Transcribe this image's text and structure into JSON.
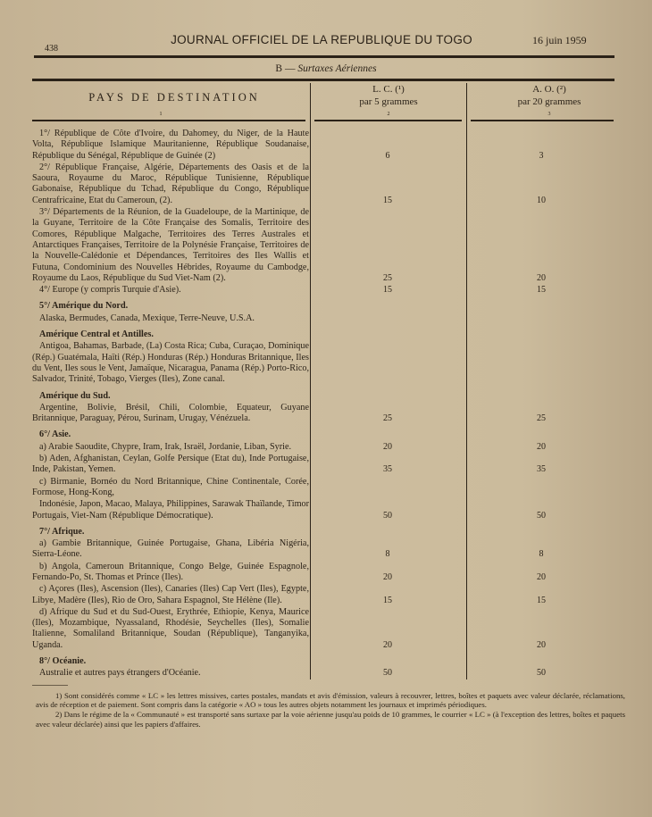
{
  "header": {
    "page_number": "438",
    "journal_title": "JOURNAL OFFICIEL DE LA REPUBLIQUE DU TOGO",
    "date": "16 juin 1959"
  },
  "section_title_prefix": "B —",
  "section_title": "Surtaxes Aériennes",
  "table": {
    "columns": [
      {
        "label": "PAYS DE DESTINATION",
        "sub": "",
        "num": "1"
      },
      {
        "label": "L. C. (¹)",
        "sub": "par 5 grammes",
        "num": "2"
      },
      {
        "label": "A. O. (²)",
        "sub": "par 20 grammes",
        "num": "3"
      }
    ],
    "entries": [
      {
        "text": "1°/ République de Côte d'Ivoire, du Dahomey, du Niger, de la Haute Volta, République Islamique Mauritanienne, République Soudanaise, République du Sénégal, République de Guinée (2)",
        "lc": "6",
        "ao": "3"
      },
      {
        "text": "2°/ République Française, Algérie, Départements des Oasis et de la Saoura, Royaume du Maroc, République Tunisienne, République Gabonaise, République du Tchad, République du Congo, République Centrafricaine, Etat du Cameroun, (2).",
        "lc": "15",
        "ao": "10"
      },
      {
        "text": "3°/ Départements de la Réunion, de la Guadeloupe, de la Martinique, de la Guyane, Territoire de la Côte Française des Somalis, Territoire des Comores, République Malgache, Territoires des Terres Australes et Antarctiques Françaises, Territoire de la Polynésie Française, Territoires de la Nouvelle-Calédonie et Dépendances, Territoires des Iles Wallis et Futuna, Condominium des Nouvelles Hébrides, Royaume du Cambodge, Royaume du Laos, République du Sud Viet-Nam (2).",
        "lc": "25",
        "ao": "20"
      },
      {
        "text": "4°/ Europe (y compris Turquie d'Asie).",
        "lc": "15",
        "ao": "15"
      },
      {
        "heading": "5°/ Amérique du Nord.",
        "text": ""
      },
      {
        "text": "Alaska, Bermudes, Canada, Mexique, Terre-Neuve, U.S.A."
      },
      {
        "heading": "Amérique Central et Antilles.",
        "text": ""
      },
      {
        "text": "Antigoa, Bahamas, Barbade, (La) Costa Rica; Cuba, Curaçao, Dominique (Rép.) Guatémala, Haïti (Rép.) Honduras (Rép.) Honduras Britannique, Iles du Vent, Iles sous le Vent, Jamaïque, Nicaragua, Panama (Rép.) Porto-Rico, Salvador, Trinité, Tobago, Vierges (Iles), Zone canal."
      },
      {
        "heading": "Amérique du Sud.",
        "text": ""
      },
      {
        "text": "Argentine, Bolivie, Brésil, Chili, Colombie, Equateur, Guyane Britannique, Paraguay, Pérou, Surinam, Urugay, Vénézuela.",
        "lc": "25",
        "ao": "25"
      },
      {
        "heading": "6°/ Asie.",
        "text": ""
      },
      {
        "text": "a) Arabie Saoudite, Chypre, Iram, Irak, Israël, Jordanie, Liban, Syrie.",
        "lc": "20",
        "ao": "20"
      },
      {
        "text": "b) Aden, Afghanistan, Ceylan, Golfe Persique (Etat du), Inde Portugaise, Inde, Pakistan, Yemen.",
        "lc": "35",
        "ao": "35"
      },
      {
        "text": "c) Birmanie, Bornéo du Nord Britannique, Chine Continentale, Corée, Formose, Hong-Kong,"
      },
      {
        "text": "Indonésie, Japon, Macao, Malaya, Philippines, Sarawak Thaïlande, Timor Portugais, Viet-Nam (République Démocratique).",
        "lc": "50",
        "ao": "50"
      },
      {
        "heading": "7°/ Afrique.",
        "text": ""
      },
      {
        "text": "a) Gambie Britannique, Guinée Portugaise, Ghana, Libéria Nigéria, Sierra-Léone.",
        "lc": "8",
        "ao": "8"
      },
      {
        "text": "b) Angola, Cameroun Britannique, Congo Belge, Guinée Espagnole, Fernando-Po, St. Thomas et Prince (Iles).",
        "lc": "20",
        "ao": "20"
      },
      {
        "text": "c) Açores (Iles), Ascension (Iles), Canaries (Iles) Cap Vert (Iles), Egypte, Libye, Madère (Iles), Rio de Oro, Sahara Espagnol, Ste Hélène (Ile).",
        "lc": "15",
        "ao": "15"
      },
      {
        "text": "d) Afrique du Sud et du Sud-Ouest, Erythrée, Ethiopie, Kenya, Maurice (Iles), Mozambique, Nyassaland, Rhodésie, Seychelles (Iles), Somalie Italienne, Somaliland Britannique, Soudan (République), Tanganyika, Uganda.",
        "lc": "20",
        "ao": "20"
      },
      {
        "heading": "8°/ Océanie.",
        "text": ""
      },
      {
        "text": "Australie et autres pays étrangers d'Océanie.",
        "lc": "50",
        "ao": "50"
      }
    ]
  },
  "footnotes": [
    "1) Sont considérés comme « LC » les lettres missives, cartes postales, mandats et avis d'émission, valeurs à recouvrer, lettres, boîtes et paquets avec valeur déclarée, réclamations, avis de réception et de paiement. Sont compris dans la catégorie « AO » tous les autres objets notamment les journaux et imprimés périodiques.",
    "2) Dans le régime de la « Communauté » est transporté sans surtaxe par la voie aérienne jusqu'au poids de 10 grammes, le courrier « LC » (à l'exception des lettres, boîtes et paquets avec valeur déclarée) ainsi que les papiers d'affaires."
  ]
}
